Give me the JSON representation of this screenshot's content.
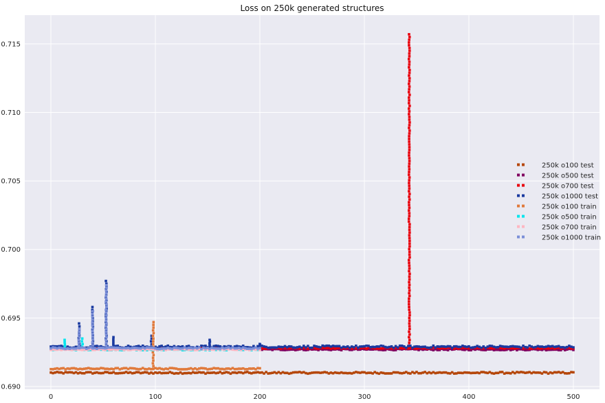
{
  "chart_data": {
    "type": "scatter",
    "title": "Loss on 250k generated structures",
    "xlabel": "",
    "ylabel": "",
    "xlim": [
      -25,
      525
    ],
    "ylim": [
      0.6898,
      0.7171
    ],
    "xticks": [
      0,
      100,
      200,
      300,
      400,
      500
    ],
    "yticks": [
      0.69,
      0.695,
      0.7,
      0.705,
      0.71,
      0.715
    ],
    "ytick_labels": [
      "0.690",
      "0.695",
      "0.700",
      "0.705",
      "0.710",
      "0.715"
    ],
    "xtick_labels": [
      "0",
      "100",
      "200",
      "300",
      "400",
      "500"
    ],
    "grid": true,
    "legend_position": "center-right",
    "series": [
      {
        "name": "250k o100 test",
        "color": "#b5470b",
        "x_range": [
          0,
          500
        ],
        "baseline": 0.691,
        "jitter": 6e-05,
        "spikes": []
      },
      {
        "name": "250k o500 test",
        "color": "#800060",
        "x_range": [
          200,
          500
        ],
        "baseline": 0.6927,
        "jitter": 5e-05,
        "spikes": []
      },
      {
        "name": "250k o700 test",
        "color": "#e8000b",
        "x_range": [
          0,
          500
        ],
        "baseline": 0.6928,
        "jitter": 4e-05,
        "spikes": [
          {
            "x": 343,
            "y": 0.7157
          }
        ]
      },
      {
        "name": "250k o1000 test",
        "color": "#1a3aa0",
        "x_range": [
          0,
          500
        ],
        "baseline": 0.6929,
        "jitter": 8e-05,
        "spikes": [
          {
            "x": 27,
            "y": 0.6946
          },
          {
            "x": 40,
            "y": 0.6958
          },
          {
            "x": 53,
            "y": 0.6977
          },
          {
            "x": 60,
            "y": 0.6936
          },
          {
            "x": 96,
            "y": 0.6937
          },
          {
            "x": 152,
            "y": 0.6934
          },
          {
            "x": 200,
            "y": 0.6931
          }
        ]
      },
      {
        "name": "250k o100 train",
        "color": "#e07a3c",
        "x_range": [
          0,
          200
        ],
        "baseline": 0.6913,
        "jitter": 5e-05,
        "spikes": [
          {
            "x": 98,
            "y": 0.6947
          }
        ]
      },
      {
        "name": "250k o500 train",
        "color": "#00e5ee",
        "x_range": [
          0,
          200
        ],
        "baseline": 0.6927,
        "jitter": 5e-05,
        "spikes": [
          {
            "x": 13,
            "y": 0.6934
          },
          {
            "x": 30,
            "y": 0.6935
          }
        ]
      },
      {
        "name": "250k o700 train",
        "color": "#ffb6c1",
        "x_range": [
          0,
          200
        ],
        "baseline": 0.6927,
        "jitter": 4e-05,
        "spikes": []
      },
      {
        "name": "250k o1000 train",
        "color": "#7b8fd8",
        "x_range": [
          0,
          200
        ],
        "baseline": 0.6928,
        "jitter": 6e-05,
        "spikes": [
          {
            "x": 27,
            "y": 0.6942
          },
          {
            "x": 40,
            "y": 0.6955
          },
          {
            "x": 53,
            "y": 0.6974
          }
        ]
      }
    ]
  }
}
